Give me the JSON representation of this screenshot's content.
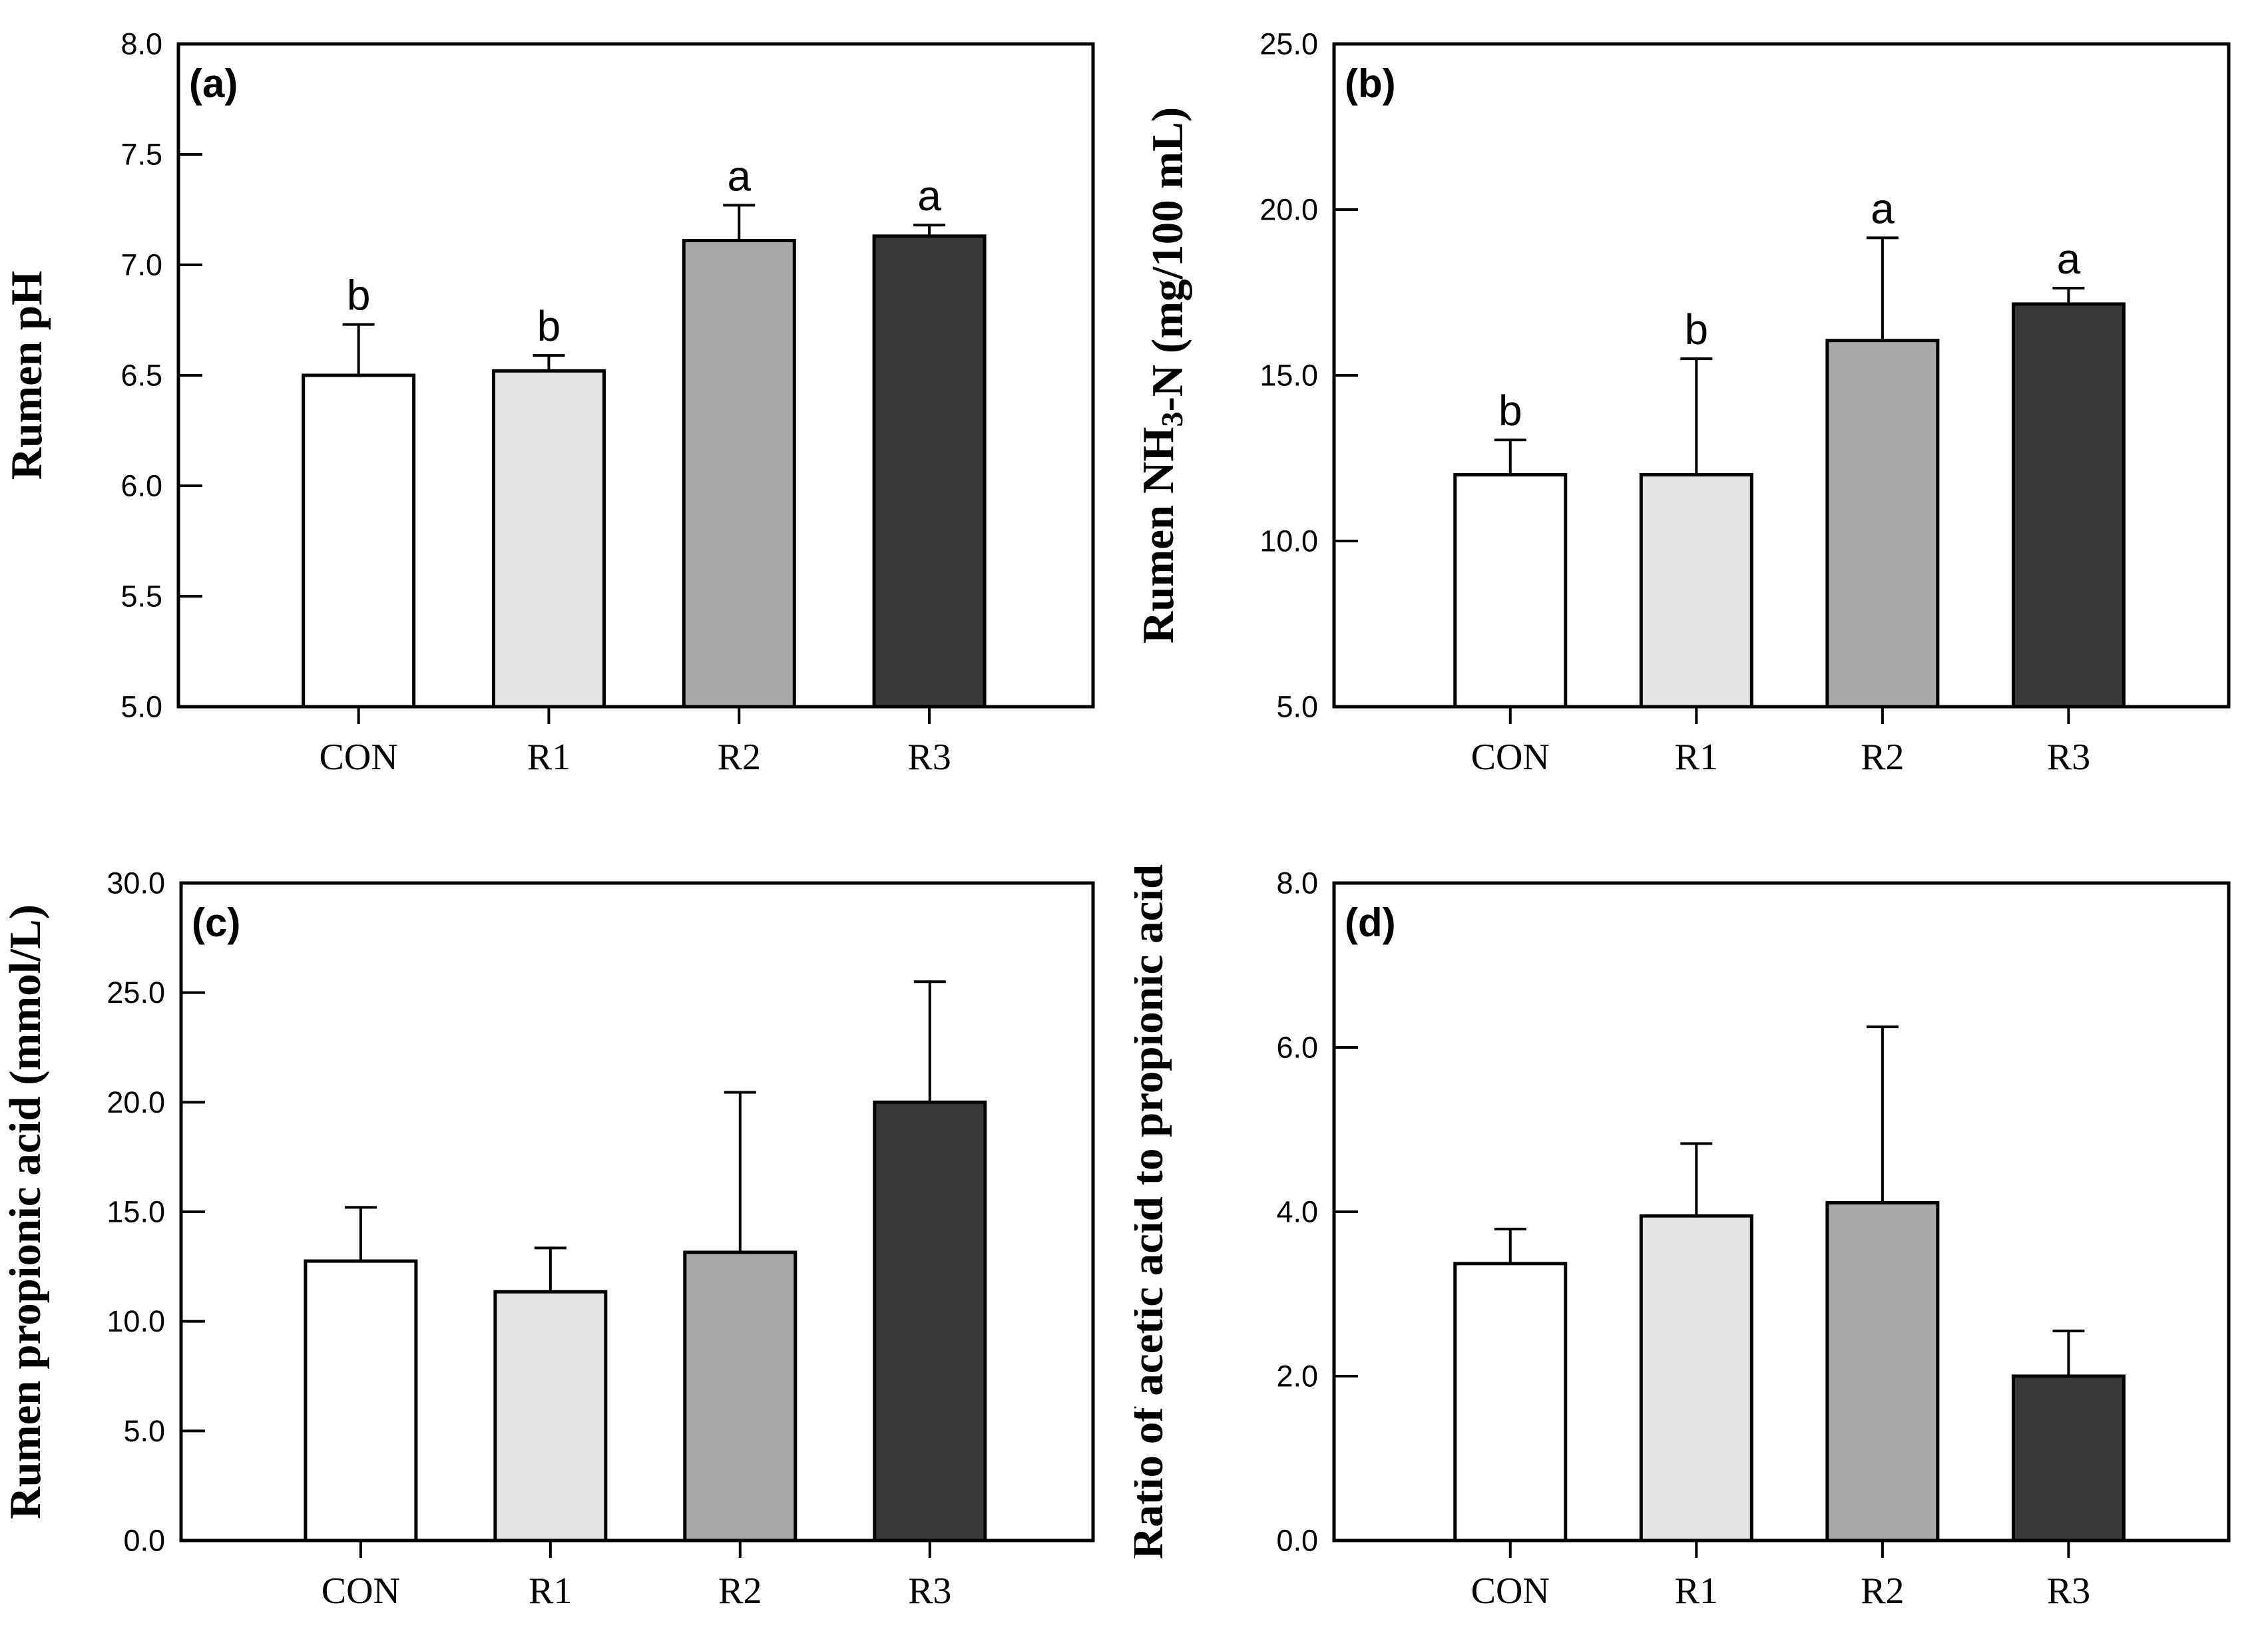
{
  "figure": {
    "background": "#ffffff",
    "bar_fill_colors": [
      "#ffffff",
      "#e3e3e3",
      "#a9a9a9",
      "#3a3a3a"
    ],
    "bar_stroke_color": "#000000",
    "axis_color": "#000000"
  },
  "chart_data": [
    {
      "type": "bar",
      "panel_label": "(a)",
      "ylabel": "Rumen pH",
      "ylabel_parts": [
        {
          "text": "Rumen pH"
        }
      ],
      "ylim": [
        5.0,
        8.0
      ],
      "ytick_values": [
        5.0,
        5.5,
        6.0,
        6.5,
        7.0,
        7.5,
        8.0
      ],
      "ytick_labels": [
        "5.0",
        "5.5",
        "6.0",
        "6.5",
        "7.0",
        "7.5",
        "8.0"
      ],
      "categories": [
        "CON",
        "R1",
        "R2",
        "R3"
      ],
      "values": [
        6.5,
        6.52,
        7.11,
        7.13
      ],
      "errors_upper": [
        0.23,
        0.07,
        0.16,
        0.05
      ],
      "sig_letters": [
        "b",
        "b",
        "a",
        "a"
      ],
      "grid": false,
      "legend": null
    },
    {
      "type": "bar",
      "panel_label": "(b)",
      "ylabel": "Rumen NH3-N (mg/100 mL)",
      "ylabel_parts": [
        {
          "text": "Rumen NH"
        },
        {
          "text": "3",
          "sub": true
        },
        {
          "text": "-N (mg/100 mL)"
        }
      ],
      "ylim": [
        5.0,
        25.0
      ],
      "ytick_values": [
        5.0,
        10.0,
        15.0,
        20.0,
        25.0
      ],
      "ytick_labels": [
        "5.0",
        "10.0",
        "15.0",
        "20.0",
        "25.0"
      ],
      "categories": [
        "CON",
        "R1",
        "R2",
        "R3"
      ],
      "values": [
        12.0,
        12.0,
        16.05,
        17.15
      ],
      "errors_upper": [
        1.05,
        3.5,
        3.1,
        0.48
      ],
      "sig_letters": [
        "b",
        "b",
        "a",
        "a"
      ],
      "grid": false,
      "legend": null
    },
    {
      "type": "bar",
      "panel_label": "(c)",
      "ylabel": "Rumen propionic acid (mmol/L)",
      "ylabel_parts": [
        {
          "text": "Rumen propionic acid (mmol/L)"
        }
      ],
      "ylim": [
        0.0,
        30.0
      ],
      "ytick_values": [
        0.0,
        5.0,
        10.0,
        15.0,
        20.0,
        25.0,
        30.0
      ],
      "ytick_labels": [
        "0.0",
        "5.0",
        "10.0",
        "15.0",
        "20.0",
        "25.0",
        "30.0"
      ],
      "categories": [
        "CON",
        "R1",
        "R2",
        "R3"
      ],
      "values": [
        12.75,
        11.35,
        13.15,
        20.0
      ],
      "errors_upper": [
        2.45,
        2.0,
        7.3,
        5.5
      ],
      "sig_letters": [
        "",
        "",
        "",
        ""
      ],
      "grid": false,
      "legend": null
    },
    {
      "type": "bar",
      "panel_label": "(d)",
      "ylabel": "Ratio of acetic acid to propionic acid",
      "ylabel_parts": [
        {
          "text": "Ratio of acetic acid to propionic acid"
        }
      ],
      "ylim": [
        0.0,
        8.0
      ],
      "ytick_values": [
        0.0,
        2.0,
        4.0,
        6.0,
        8.0
      ],
      "ytick_labels": [
        "0.0",
        "2.0",
        "4.0",
        "6.0",
        "8.0"
      ],
      "categories": [
        "CON",
        "R1",
        "R2",
        "R3"
      ],
      "values": [
        3.37,
        3.95,
        4.11,
        2.0
      ],
      "errors_upper": [
        0.42,
        0.88,
        2.14,
        0.55
      ],
      "sig_letters": [
        "",
        "",
        "",
        ""
      ],
      "grid": false,
      "legend": null
    }
  ]
}
